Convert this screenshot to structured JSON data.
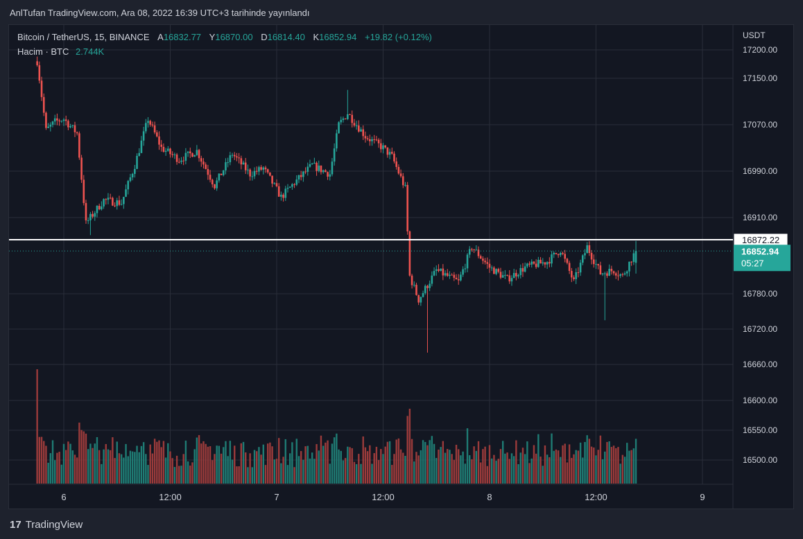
{
  "published": "AnlTufan TradingView.com, Ara 08, 2022 16:39 UTC+3 tarihinde yayınlandı",
  "legend": {
    "symbol": "Bitcoin / TetherUS, 15, BINANCE",
    "open_label": "A",
    "open_value": "16832.77",
    "high_label": "Y",
    "high_value": "16870.00",
    "low_label": "D",
    "low_value": "16814.40",
    "close_label": "K",
    "close_value": "16852.94",
    "change": "+19.82 (+0.12%)",
    "volume_label": "Hacim · BTC",
    "volume_value": "2.744K"
  },
  "price_axis": {
    "unit": "USDT",
    "ticks": [
      "17200.00",
      "17150.00",
      "17070.00",
      "16990.00",
      "16910.00",
      "16780.00",
      "16720.00",
      "16660.00",
      "16600.00",
      "16550.00",
      "16500.00"
    ]
  },
  "time_axis": {
    "ticks": [
      "6",
      "12:00",
      "7",
      "12:00",
      "8",
      "12:00",
      "9"
    ]
  },
  "markers": {
    "horizontal_line_label": "16872.22",
    "last_price_label": "16852.94",
    "countdown_label": "05:27"
  },
  "footer": {
    "logo": "17",
    "brand": "TradingView"
  },
  "colors": {
    "up": "#26a69a",
    "down": "#ef5350",
    "up_volume": "#1f7c74",
    "down_volume": "#9b3b3b",
    "background": "#131722",
    "grid": "#2a2e39",
    "hline": "#ffffff",
    "last_price_bg": "#26a69a"
  },
  "chart_data": {
    "type": "candlestick",
    "interval": "15",
    "exchange": "BINANCE",
    "pair": "BTC/USDT",
    "y_axis_unit": "USDT",
    "y_ticks": [
      17200,
      17150,
      17070,
      16990,
      16910,
      16780,
      16720,
      16660,
      16600,
      16550,
      16500
    ],
    "x_ticks": [
      "6",
      "12:00",
      "7",
      "12:00",
      "8",
      "12:00",
      "9"
    ],
    "grid": true,
    "horizontal_line": 16872.22,
    "last_close": 16852.94,
    "last_bar": {
      "open": 16832.77,
      "high": 16870.0,
      "low": 16814.4,
      "close": 16852.94,
      "volume": "2.744K"
    },
    "waypoints": [
      {
        "time": "12-05 21:00",
        "price": 17180
      },
      {
        "time": "12-05 22:00",
        "price": 17060
      },
      {
        "time": "12-05 23:00",
        "price": 17075
      },
      {
        "time": "12-06 00:00",
        "price": 17080
      },
      {
        "time": "12-06 01:30",
        "price": 17055
      },
      {
        "time": "12-06 02:30",
        "price": 16900
      },
      {
        "time": "12-06 04:30",
        "price": 16940
      },
      {
        "time": "12-06 06:30",
        "price": 16935
      },
      {
        "time": "12-06 08:00",
        "price": 17000
      },
      {
        "time": "12-06 09:30",
        "price": 17080
      },
      {
        "time": "12-06 11:00",
        "price": 17030
      },
      {
        "time": "12-06 13:00",
        "price": 17010
      },
      {
        "time": "12-06 15:00",
        "price": 17025
      },
      {
        "time": "12-06 17:00",
        "price": 16965
      },
      {
        "time": "12-06 19:00",
        "price": 17020
      },
      {
        "time": "12-06 21:00",
        "price": 16985
      },
      {
        "time": "12-06 22:30",
        "price": 16995
      },
      {
        "time": "12-07 00:30",
        "price": 16945
      },
      {
        "time": "12-07 02:00",
        "price": 16970
      },
      {
        "time": "12-07 04:00",
        "price": 17000
      },
      {
        "time": "12-07 06:00",
        "price": 16985
      },
      {
        "time": "12-07 07:00",
        "price": 17070
      },
      {
        "time": "12-07 08:00",
        "price": 17090
      },
      {
        "time": "12-07 10:00",
        "price": 17050
      },
      {
        "time": "12-07 12:00",
        "price": 17030
      },
      {
        "time": "12-07 13:00",
        "price": 17015
      },
      {
        "time": "12-07 14:30",
        "price": 16960
      },
      {
        "time": "12-07 15:00",
        "price": 16810
      },
      {
        "time": "12-07 16:00",
        "price": 16770
      },
      {
        "time": "12-07 18:00",
        "price": 16820
      },
      {
        "time": "12-07 20:30",
        "price": 16800
      },
      {
        "time": "12-07 22:00",
        "price": 16860
      },
      {
        "time": "12-08 00:00",
        "price": 16825
      },
      {
        "time": "12-08 02:00",
        "price": 16805
      },
      {
        "time": "12-08 04:00",
        "price": 16825
      },
      {
        "time": "12-08 06:30",
        "price": 16835
      },
      {
        "time": "12-08 08:00",
        "price": 16855
      },
      {
        "time": "12-08 09:30",
        "price": 16800
      },
      {
        "time": "12-08 11:00",
        "price": 16860
      },
      {
        "time": "12-08 12:30",
        "price": 16815
      },
      {
        "time": "12-08 14:00",
        "price": 16820
      },
      {
        "time": "12-08 15:00",
        "price": 16810
      },
      {
        "time": "12-08 16:00",
        "price": 16840
      },
      {
        "time": "12-08 16:30",
        "price": 16852.94
      }
    ]
  }
}
